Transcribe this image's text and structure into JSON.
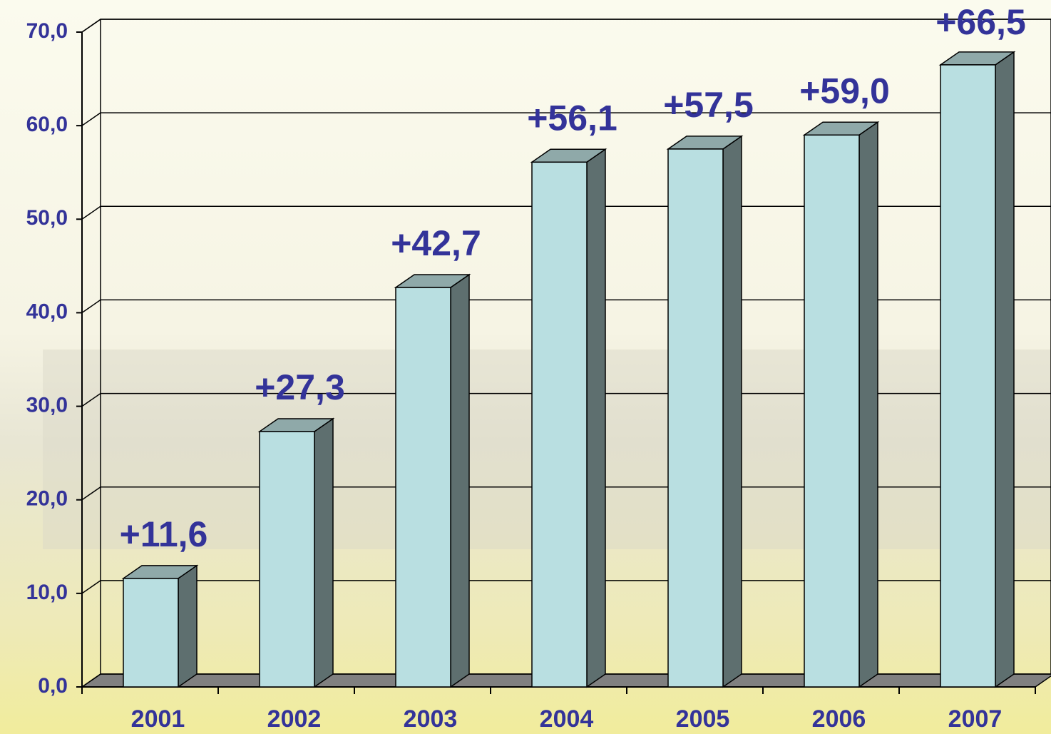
{
  "chart_data": {
    "type": "bar3d",
    "categories": [
      "2001",
      "2002",
      "2003",
      "2004",
      "2005",
      "2006",
      "2007"
    ],
    "values": [
      11.6,
      27.3,
      42.7,
      56.1,
      57.5,
      59.0,
      66.5
    ],
    "value_labels": [
      "+11,6",
      "+27,3",
      "+42,7",
      "+56,1",
      "+57,5",
      "+59,0",
      "+66,5"
    ],
    "color": "#b9dfe1",
    "ylim": [
      0,
      70
    ],
    "yticks": [
      {
        "value": 0,
        "label": "0,0"
      },
      {
        "value": 10,
        "label": "10,0"
      },
      {
        "value": 20,
        "label": "20,0"
      },
      {
        "value": 30,
        "label": "30,0"
      },
      {
        "value": 40,
        "label": "40,0"
      },
      {
        "value": 50,
        "label": "50,0"
      },
      {
        "value": 60,
        "label": "60,0"
      },
      {
        "value": 70,
        "label": "70,0"
      }
    ],
    "grid": true
  }
}
